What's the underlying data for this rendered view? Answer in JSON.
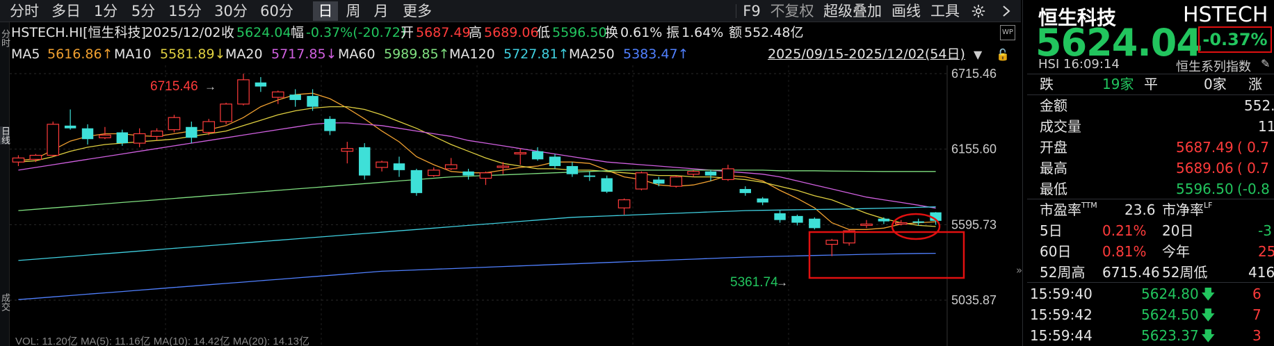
{
  "toolbar": {
    "periods": [
      "分时",
      "多日",
      "1分",
      "5分",
      "15分",
      "30分",
      "60分",
      "日",
      "周",
      "月",
      "更多"
    ],
    "active_period": "日",
    "tools": [
      "F9",
      "不复权",
      "超级叠加",
      "画线",
      "工具"
    ],
    "gear_icon": "gear-icon",
    "collapse_icon": "chevron-right-icon"
  },
  "quote_bar": {
    "symbol": "HSTECH.HI[恒生科技]",
    "date": "2025/12/02",
    "close_label": "收",
    "close": "5624.04",
    "change_label": "幅",
    "change": "-0.37%(-20.72)",
    "open_label": "开",
    "open": "5687.49",
    "high_label": "高",
    "high": "5689.06",
    "low_label": "低",
    "low": "5596.50",
    "turnover_label": "换",
    "turnover": "0.61%",
    "amplitude_label": "振",
    "amplitude": "1.64%",
    "amount_label": "额",
    "amount": "552.48亿"
  },
  "ma_bar": {
    "items": [
      {
        "label": "MA5",
        "value": "5616.86↑",
        "color": "#f0a030"
      },
      {
        "label": "MA10",
        "value": "5581.89↓",
        "color": "#e0d040"
      },
      {
        "label": "MA20",
        "value": "5717.85↓",
        "color": "#d060e0"
      },
      {
        "label": "MA60",
        "value": "5989.85↑",
        "color": "#80e080"
      },
      {
        "label": "MA120",
        "value": "5727.81↑",
        "color": "#40d0e0"
      },
      {
        "label": "MA250",
        "value": "5383.47↑",
        "color": "#5080ff"
      }
    ],
    "range": "2025/09/15-2025/12/02(54日)"
  },
  "left_strip": [
    "分时",
    "日线",
    "成交"
  ],
  "chart_data": {
    "type": "candlestick",
    "ylim": [
      5035.87,
      6715.46
    ],
    "y_ticks": [
      "6715.46",
      "6155.60",
      "5595.73",
      "5035.87"
    ],
    "high_annotation": "6715.46",
    "low_annotation": "5361.74",
    "bottom_partial": "VOL: 11.20亿  MA(5): 11.16亿  MA(10): 14.42亿  MA(20): 14.13亿",
    "candles": [
      {
        "o": 6060,
        "h": 6110,
        "l": 6030,
        "c": 6090
      },
      {
        "o": 6080,
        "h": 6120,
        "l": 6060,
        "c": 6110
      },
      {
        "o": 6110,
        "h": 6360,
        "l": 6100,
        "c": 6340
      },
      {
        "o": 6330,
        "h": 6450,
        "l": 6300,
        "c": 6310
      },
      {
        "o": 6310,
        "h": 6340,
        "l": 6190,
        "c": 6230
      },
      {
        "o": 6240,
        "h": 6320,
        "l": 6230,
        "c": 6260
      },
      {
        "o": 6280,
        "h": 6300,
        "l": 6180,
        "c": 6200
      },
      {
        "o": 6200,
        "h": 6310,
        "l": 6170,
        "c": 6270
      },
      {
        "o": 6250,
        "h": 6310,
        "l": 6220,
        "c": 6290
      },
      {
        "o": 6300,
        "h": 6410,
        "l": 6280,
        "c": 6390
      },
      {
        "o": 6320,
        "h": 6360,
        "l": 6200,
        "c": 6240
      },
      {
        "o": 6280,
        "h": 6380,
        "l": 6260,
        "c": 6360
      },
      {
        "o": 6360,
        "h": 6500,
        "l": 6340,
        "c": 6490
      },
      {
        "o": 6490,
        "h": 6715,
        "l": 6480,
        "c": 6670
      },
      {
        "o": 6650,
        "h": 6690,
        "l": 6580,
        "c": 6620
      },
      {
        "o": 6540,
        "h": 6590,
        "l": 6490,
        "c": 6580
      },
      {
        "o": 6560,
        "h": 6600,
        "l": 6470,
        "c": 6520
      },
      {
        "o": 6550,
        "h": 6600,
        "l": 6440,
        "c": 6470
      },
      {
        "o": 6380,
        "h": 6400,
        "l": 6260,
        "c": 6290
      },
      {
        "o": 6140,
        "h": 6210,
        "l": 6050,
        "c": 6160
      },
      {
        "o": 6170,
        "h": 6200,
        "l": 5930,
        "c": 5960
      },
      {
        "o": 6020,
        "h": 6070,
        "l": 5990,
        "c": 6060
      },
      {
        "o": 6050,
        "h": 6100,
        "l": 5950,
        "c": 6000
      },
      {
        "o": 6000,
        "h": 6010,
        "l": 5810,
        "c": 5830
      },
      {
        "o": 5960,
        "h": 6020,
        "l": 5950,
        "c": 6000
      },
      {
        "o": 6010,
        "h": 6090,
        "l": 6000,
        "c": 6040
      },
      {
        "o": 5990,
        "h": 6010,
        "l": 5930,
        "c": 5960
      },
      {
        "o": 5940,
        "h": 5990,
        "l": 5890,
        "c": 5980
      },
      {
        "o": 6020,
        "h": 6060,
        "l": 5970,
        "c": 6030
      },
      {
        "o": 6120,
        "h": 6160,
        "l": 6040,
        "c": 6130
      },
      {
        "o": 6140,
        "h": 6170,
        "l": 6070,
        "c": 6080
      },
      {
        "o": 6100,
        "h": 6120,
        "l": 6010,
        "c": 6030
      },
      {
        "o": 6030,
        "h": 6060,
        "l": 5950,
        "c": 5970
      },
      {
        "o": 5960,
        "h": 5990,
        "l": 5920,
        "c": 5950
      },
      {
        "o": 5940,
        "h": 5960,
        "l": 5830,
        "c": 5840
      },
      {
        "o": 5720,
        "h": 5790,
        "l": 5670,
        "c": 5780
      },
      {
        "o": 5860,
        "h": 5990,
        "l": 5850,
        "c": 5980
      },
      {
        "o": 5930,
        "h": 5950,
        "l": 5880,
        "c": 5900
      },
      {
        "o": 5880,
        "h": 5960,
        "l": 5870,
        "c": 5950
      },
      {
        "o": 5970,
        "h": 6000,
        "l": 5950,
        "c": 5990
      },
      {
        "o": 5990,
        "h": 6000,
        "l": 5920,
        "c": 5960
      },
      {
        "o": 5930,
        "h": 6040,
        "l": 5920,
        "c": 6010
      },
      {
        "o": 5860,
        "h": 5880,
        "l": 5810,
        "c": 5830
      },
      {
        "o": 5790,
        "h": 5800,
        "l": 5740,
        "c": 5760
      },
      {
        "o": 5680,
        "h": 5700,
        "l": 5610,
        "c": 5630
      },
      {
        "o": 5660,
        "h": 5670,
        "l": 5590,
        "c": 5610
      },
      {
        "o": 5640,
        "h": 5650,
        "l": 5560,
        "c": 5570
      },
      {
        "o": 5450,
        "h": 5490,
        "l": 5362,
        "c": 5480
      },
      {
        "o": 5460,
        "h": 5560,
        "l": 5440,
        "c": 5550
      },
      {
        "o": 5590,
        "h": 5630,
        "l": 5570,
        "c": 5600
      },
      {
        "o": 5640,
        "h": 5650,
        "l": 5600,
        "c": 5620
      },
      {
        "o": 5600,
        "h": 5630,
        "l": 5590,
        "c": 5610
      },
      {
        "o": 5620,
        "h": 5640,
        "l": 5590,
        "c": 5610
      },
      {
        "o": 5687,
        "h": 5689,
        "l": 5596,
        "c": 5624
      }
    ],
    "ma_lines": {
      "ma5": {
        "color": "#f0a030",
        "values": [
          6070,
          6085,
          6150,
          6215,
          6250,
          6270,
          6270,
          6255,
          6250,
          6270,
          6290,
          6300,
          6330,
          6390,
          6470,
          6520,
          6560,
          6570,
          6530,
          6460,
          6380,
          6290,
          6210,
          6100,
          6040,
          5990,
          5980,
          5980,
          6000,
          6020,
          6030,
          6060,
          6060,
          6050,
          6000,
          5950,
          5930,
          5890,
          5880,
          5890,
          5920,
          5960,
          5950,
          5920,
          5850,
          5790,
          5720,
          5610,
          5560,
          5560,
          5570,
          5600,
          5610,
          5617
        ]
      },
      "ma10": {
        "color": "#e0d040",
        "values": [
          6060,
          6070,
          6100,
          6140,
          6170,
          6190,
          6200,
          6210,
          6220,
          6230,
          6250,
          6270,
          6290,
          6330,
          6370,
          6410,
          6440,
          6460,
          6470,
          6470,
          6450,
          6410,
          6360,
          6310,
          6250,
          6190,
          6140,
          6090,
          6050,
          6030,
          6010,
          6010,
          6000,
          6000,
          5990,
          5980,
          5970,
          5960,
          5960,
          5950,
          5950,
          5940,
          5930,
          5910,
          5880,
          5850,
          5810,
          5780,
          5730,
          5680,
          5640,
          5610,
          5590,
          5582
        ]
      },
      "ma20": {
        "color": "#d060e0",
        "values": [
          6000,
          6020,
          6040,
          6060,
          6080,
          6100,
          6120,
          6140,
          6160,
          6180,
          6200,
          6220,
          6240,
          6260,
          6280,
          6300,
          6320,
          6340,
          6350,
          6350,
          6340,
          6330,
          6310,
          6290,
          6270,
          6250,
          6220,
          6200,
          6180,
          6160,
          6140,
          6120,
          6100,
          6080,
          6060,
          6050,
          6040,
          6030,
          6020,
          6010,
          6000,
          5990,
          5980,
          5970,
          5950,
          5920,
          5890,
          5860,
          5830,
          5800,
          5780,
          5760,
          5740,
          5718
        ]
      },
      "ma60": {
        "color": "#80e080",
        "values": [
          5700,
          5710,
          5720,
          5730,
          5740,
          5750,
          5760,
          5770,
          5780,
          5790,
          5800,
          5810,
          5820,
          5830,
          5840,
          5850,
          5860,
          5870,
          5880,
          5890,
          5900,
          5910,
          5920,
          5930,
          5940,
          5950,
          5955,
          5960,
          5965,
          5970,
          5975,
          5980,
          5985,
          5990,
          5995,
          6000,
          6000,
          6000,
          6000,
          6000,
          6000,
          6000,
          6000,
          6000,
          5995,
          5995,
          5995,
          5993,
          5992,
          5991,
          5990,
          5990,
          5990,
          5990
        ]
      },
      "ma120": {
        "color": "#40d0e0",
        "values": [
          5330,
          5340,
          5350,
          5360,
          5370,
          5380,
          5390,
          5400,
          5410,
          5420,
          5430,
          5440,
          5450,
          5460,
          5470,
          5480,
          5490,
          5500,
          5510,
          5520,
          5530,
          5540,
          5550,
          5560,
          5570,
          5580,
          5590,
          5600,
          5610,
          5620,
          5630,
          5640,
          5650,
          5655,
          5660,
          5665,
          5670,
          5675,
          5680,
          5685,
          5690,
          5695,
          5700,
          5702,
          5704,
          5706,
          5708,
          5710,
          5712,
          5715,
          5718,
          5720,
          5724,
          5728
        ]
      },
      "ma250": {
        "color": "#5080ff",
        "values": [
          5040,
          5050,
          5060,
          5070,
          5080,
          5090,
          5100,
          5110,
          5120,
          5130,
          5140,
          5150,
          5160,
          5170,
          5180,
          5190,
          5200,
          5210,
          5220,
          5230,
          5240,
          5250,
          5255,
          5260,
          5265,
          5270,
          5275,
          5280,
          5285,
          5290,
          5295,
          5300,
          5305,
          5310,
          5315,
          5320,
          5325,
          5330,
          5335,
          5340,
          5345,
          5350,
          5355,
          5358,
          5361,
          5364,
          5367,
          5370,
          5373,
          5376,
          5378,
          5380,
          5382,
          5383
        ]
      }
    }
  },
  "right_panel": {
    "name": "恒生科技",
    "code": "HSTECH",
    "price": "5624.04",
    "change_pct": "-0.37%",
    "sub_left": "HSI  16:09:14",
    "sub_right": "恒生系列指数",
    "breadth": {
      "down_label": "跌",
      "down_count": "19家",
      "flat_label": "平",
      "flat_count": "0家",
      "up_label": "涨"
    },
    "stats": [
      {
        "label": "金额",
        "value": "552.",
        "extra": ""
      },
      {
        "label": "成交量",
        "value": "11.",
        "extra": ""
      },
      {
        "label": "开盘",
        "value": "5687.49",
        "extra": "( 0.7"
      },
      {
        "label": "最高",
        "value": "5689.06",
        "extra": "( 0.7"
      },
      {
        "label": "最低",
        "value": "5596.50",
        "extra": "(-0.8"
      }
    ],
    "valuation": {
      "pe_label": "市盈率",
      "pe_sup": "TTM",
      "pe_value": "23.6",
      "pb_label": "市净率",
      "pb_sup": "LF"
    },
    "perf": [
      {
        "l1": "5日",
        "v1": "0.21%",
        "l2": "20日",
        "v2": "-3"
      },
      {
        "l1": "60日",
        "v1": "0.81%",
        "l2": "今年",
        "v2": "25"
      },
      {
        "l1": "52周高",
        "v1": "6715.46",
        "l2": "52周低",
        "v2": "416"
      }
    ],
    "ticks": [
      {
        "time": "15:59:40",
        "price": "5624.80",
        "vol": "6"
      },
      {
        "time": "15:59:42",
        "price": "5624.50",
        "vol": "7"
      },
      {
        "time": "15:59:44",
        "price": "5623.37",
        "vol": "3"
      }
    ]
  }
}
